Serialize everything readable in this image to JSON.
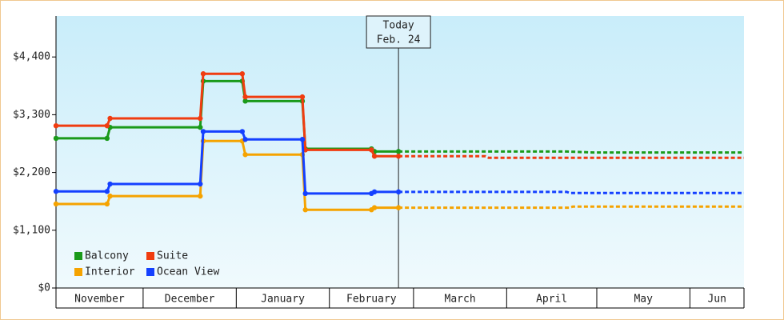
{
  "chart_data": {
    "type": "line",
    "xlim": [
      1,
      230
    ],
    "xticks": [
      {
        "value": 0,
        "label": "November"
      },
      {
        "value": 30,
        "label": "December"
      },
      {
        "value": 61,
        "label": "January"
      },
      {
        "value": 92,
        "label": "February"
      },
      {
        "value": 120,
        "label": "March"
      },
      {
        "value": 151,
        "label": "April"
      },
      {
        "value": 181,
        "label": "May"
      },
      {
        "value": 212,
        "label": "Jun"
      }
    ],
    "ylim": [
      0,
      5180
    ],
    "yticks": [
      {
        "value": 0,
        "label": "$0"
      },
      {
        "value": 1100,
        "label": "$1,100"
      },
      {
        "value": 2200,
        "label": "$2,200"
      },
      {
        "value": 3300,
        "label": "$3,300"
      },
      {
        "value": 4400,
        "label": "$4,400"
      }
    ],
    "legend": "lower left",
    "annotation": {
      "x": 115,
      "text": [
        "Today",
        "Feb. 24"
      ]
    },
    "series": [
      {
        "name": "Balcony",
        "color": "#1a9a1a",
        "x": [
          1,
          18,
          19,
          49,
          50,
          63,
          64,
          83,
          84,
          106,
          107,
          115,
          171,
          180,
          230
        ],
        "values": [
          2850,
          2850,
          3060,
          3060,
          3940,
          3940,
          3560,
          3560,
          2650,
          2650,
          2600,
          2600,
          2600,
          2580,
          2580
        ]
      },
      {
        "name": "Suite",
        "color": "#f03c10",
        "x": [
          1,
          18,
          19,
          49,
          50,
          63,
          64,
          83,
          84,
          106,
          107,
          115,
          144,
          145,
          230
        ],
        "values": [
          3090,
          3090,
          3230,
          3230,
          4080,
          4080,
          3640,
          3640,
          2630,
          2630,
          2510,
          2510,
          2510,
          2480,
          2480
        ]
      },
      {
        "name": "Interior",
        "color": "#f5a300",
        "x": [
          1,
          18,
          19,
          49,
          50,
          63,
          64,
          83,
          84,
          106,
          107,
          115,
          172,
          173,
          230
        ],
        "values": [
          1600,
          1600,
          1750,
          1750,
          2800,
          2800,
          2540,
          2540,
          1490,
          1490,
          1530,
          1530,
          1530,
          1550,
          1550
        ]
      },
      {
        "name": "Ocean View",
        "color": "#1440ff",
        "x": [
          1,
          18,
          19,
          49,
          50,
          63,
          64,
          83,
          84,
          106,
          107,
          115,
          171,
          172,
          230
        ],
        "values": [
          1840,
          1840,
          1980,
          1980,
          2980,
          2980,
          2830,
          2830,
          1800,
          1800,
          1830,
          1830,
          1830,
          1810,
          1810
        ]
      }
    ]
  }
}
